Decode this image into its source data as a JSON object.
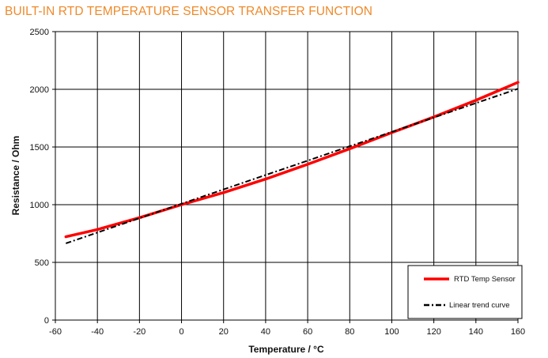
{
  "page": {
    "title": "BUILT-IN RTD TEMPERATURE SENSOR TRANSFER FUNCTION"
  },
  "colors": {
    "title": "#ef8a2a",
    "rtd": "#ff0000",
    "trend": "#000000",
    "grid": "#000000"
  },
  "chart_data": {
    "type": "line",
    "title": "BUILT-IN RTD TEMPERATURE SENSOR TRANSFER FUNCTION",
    "xlabel": "Temperature / °C",
    "ylabel": "Resistance / Ohm",
    "xlim": [
      -60,
      160
    ],
    "ylim": [
      0,
      2500
    ],
    "xticks": [
      -60,
      -40,
      -20,
      0,
      20,
      40,
      60,
      80,
      100,
      120,
      140,
      160
    ],
    "yticks": [
      0,
      500,
      1000,
      1500,
      2000,
      2500
    ],
    "grid": true,
    "legend_position": "bottom-right",
    "series": [
      {
        "name": "RTD Temp Sensor",
        "style": "solid",
        "x": [
          -55,
          -40,
          -20,
          0,
          20,
          40,
          60,
          80,
          100,
          120,
          140,
          160
        ],
        "y": [
          722,
          785,
          888,
          1000,
          1105,
          1222,
          1350,
          1485,
          1625,
          1760,
          1905,
          2060
        ]
      },
      {
        "name": "Linear trend curve",
        "style": "dash-dot",
        "x": [
          -55,
          160
        ],
        "y": [
          665,
          2005
        ]
      }
    ]
  }
}
